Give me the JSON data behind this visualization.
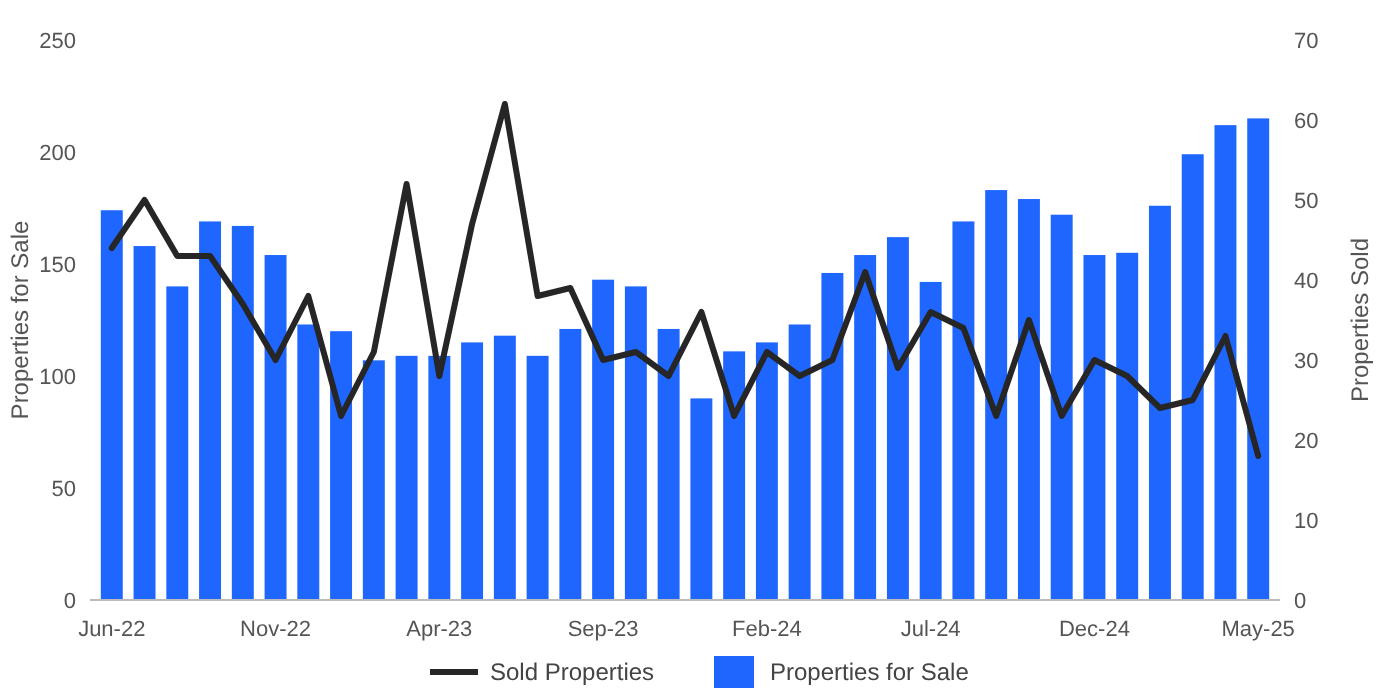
{
  "chart_data": {
    "type": "bar",
    "ylabel": "Properties for Sale",
    "y2label": "Properties Sold",
    "categories": [
      "Jun-22",
      null,
      null,
      null,
      null,
      "Nov-22",
      null,
      null,
      null,
      null,
      "Apr-23",
      null,
      null,
      null,
      null,
      "Sep-23",
      null,
      null,
      null,
      null,
      "Feb-24",
      null,
      null,
      null,
      null,
      "Jul-24",
      null,
      null,
      null,
      null,
      "Dec-24",
      null,
      null,
      null,
      null,
      "May-25"
    ],
    "series": [
      {
        "name": "Sold Properties",
        "type": "line",
        "axis": "y2",
        "color": "#262626",
        "values": [
          44,
          50,
          43,
          43,
          37,
          30,
          38,
          23,
          31,
          52,
          28,
          47,
          62,
          38,
          39,
          30,
          31,
          28,
          36,
          23,
          31,
          28,
          30,
          41,
          29,
          36,
          34,
          23,
          35,
          23,
          30,
          28,
          24,
          25,
          33,
          18
        ]
      },
      {
        "name": "Properties for Sale",
        "color": "#1f66ff",
        "values": [
          174,
          158,
          140,
          169,
          167,
          154,
          123,
          120,
          107,
          109,
          109,
          115,
          118,
          109,
          121,
          143,
          140,
          121,
          90,
          111,
          115,
          123,
          146,
          154,
          162,
          142,
          169,
          183,
          179,
          172,
          154,
          155,
          176,
          199,
          212,
          215
        ]
      }
    ],
    "ylim": [
      0,
      250
    ],
    "yticks": [
      0,
      50,
      100,
      150,
      200,
      250
    ],
    "y2lim": [
      0,
      70
    ],
    "y2ticks": [
      0,
      10,
      20,
      30,
      40,
      50,
      60,
      70
    ],
    "legend": "bottom",
    "line_style": "solid",
    "marker": "none",
    "grid": false
  }
}
